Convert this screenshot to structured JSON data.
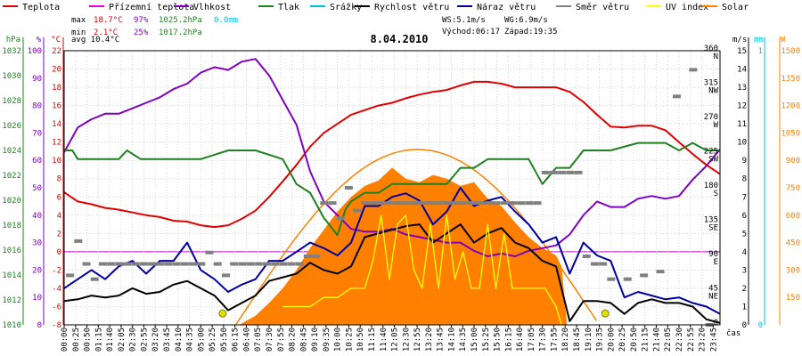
{
  "chart_data": {
    "type": "line",
    "title": "8.04.2010",
    "legend": [
      {
        "label": "Teplota",
        "color": "#e00000"
      },
      {
        "label": "Přízemní teplota",
        "color": "#e000e0"
      },
      {
        "label": "Vlhkost",
        "color": "#8000c0"
      },
      {
        "label": "Tlak",
        "color": "#208020"
      },
      {
        "label": "Srážky",
        "color": "#00c0e0"
      },
      {
        "label": "Rychlost větru",
        "color": "#000000"
      },
      {
        "label": "Náraz větru",
        "color": "#0000a0"
      },
      {
        "label": "Směr větru",
        "color": "#808080"
      },
      {
        "label": "UV index",
        "color": "#ffff00"
      },
      {
        "label": "Solar",
        "color": "#ff8000"
      }
    ],
    "stats": {
      "row1": [
        {
          "text": "max",
          "color": "#000000"
        },
        {
          "text": "18.7°C",
          "color": "#e00000"
        },
        {
          "text": "97%",
          "color": "#8000c0"
        },
        {
          "text": "1025.2hPa",
          "color": "#208020"
        },
        {
          "text": "0.0mm",
          "color": "#00c0e0"
        }
      ],
      "row2": [
        {
          "text": "min",
          "color": "#000000"
        },
        {
          "text": "2.1°C",
          "color": "#e00000"
        },
        {
          "text": "25%",
          "color": "#8000c0"
        },
        {
          "text": "1017.2hPa",
          "color": "#208020"
        }
      ],
      "row3": [
        {
          "text": "avg 10.4°C",
          "color": "#000000"
        }
      ],
      "wind_line1": [
        "WS:5.1m/s",
        "WG:6.9m/s"
      ],
      "wind_line2": [
        "Východ:06:17",
        "Západ:19:35"
      ]
    },
    "axes": {
      "hpa": {
        "unit": "hPa",
        "color": "#208020",
        "range": [
          1010,
          1032
        ],
        "ticks": [
          1010,
          1012,
          1014,
          1016,
          1018,
          1020,
          1022,
          1024,
          1026,
          1028,
          1030,
          1032
        ]
      },
      "percent": {
        "unit": "%",
        "color": "#8000c0",
        "range": [
          0,
          100
        ],
        "ticks": [
          0,
          10,
          20,
          30,
          40,
          50,
          60,
          70,
          80,
          90,
          100
        ]
      },
      "celsius": {
        "unit": "°C",
        "color": "#e00000",
        "range": [
          -8,
          22
        ],
        "ticks": [
          -8,
          -6,
          -4,
          -2,
          0,
          2,
          4,
          6,
          8,
          10,
          12,
          14,
          16,
          18,
          20,
          22
        ]
      },
      "direction": {
        "range": [
          0,
          360
        ],
        "labels": [
          {
            "deg": 360,
            "deg_text": "360",
            "name": "N"
          },
          {
            "deg": 315,
            "deg_text": "315",
            "name": "NW"
          },
          {
            "deg": 270,
            "deg_text": "270",
            "name": "W"
          },
          {
            "deg": 225,
            "deg_text": "225",
            "name": "SW"
          },
          {
            "deg": 180,
            "deg_text": "180",
            "name": "S"
          },
          {
            "deg": 135,
            "deg_text": "135",
            "name": "SE"
          },
          {
            "deg": 90,
            "deg_text": "90",
            "name": "E"
          },
          {
            "deg": 45,
            "deg_text": "45",
            "name": "NE"
          },
          {
            "deg": 0,
            "deg_text": "0",
            "name": ""
          }
        ]
      },
      "wind": {
        "unit": "m/s",
        "color": "#000000",
        "range": [
          0,
          15
        ],
        "ticks": [
          0,
          1,
          2,
          3,
          4,
          5,
          6,
          7,
          8,
          9,
          10,
          11,
          12,
          13,
          14,
          15
        ]
      },
      "rain": {
        "unit": "mm",
        "color": "#00c0e0",
        "range": [
          0,
          1
        ],
        "ticks": [
          0,
          1
        ]
      },
      "solar": {
        "unit": "W",
        "color": "#ff8000",
        "range": [
          0,
          1500
        ],
        "ticks": [
          150,
          300,
          450,
          600,
          750,
          900,
          1050,
          1200,
          1350,
          1500
        ]
      },
      "time": {
        "label": "čas",
        "ticks": [
          "00:00",
          "00:25",
          "00:50",
          "01:15",
          "01:40",
          "02:05",
          "02:30",
          "02:55",
          "03:20",
          "03:45",
          "04:10",
          "04:35",
          "05:00",
          "05:25",
          "05:50",
          "06:15",
          "06:40",
          "07:05",
          "07:30",
          "07:55",
          "08:20",
          "08:45",
          "09:10",
          "09:35",
          "10:00",
          "10:25",
          "10:50",
          "11:15",
          "11:40",
          "12:05",
          "12:30",
          "12:55",
          "13:20",
          "13:45",
          "14:10",
          "14:35",
          "15:00",
          "15:25",
          "15:50",
          "16:15",
          "16:40",
          "17:05",
          "17:30",
          "17:55",
          "18:20",
          "18:45",
          "19:10",
          "19:35",
          "20:00",
          "20:25",
          "20:50",
          "21:15",
          "21:40",
          "22:05",
          "22:30",
          "22:55",
          "23:20",
          "23:45"
        ]
      }
    },
    "x_unit": "hours",
    "series": [
      {
        "name": "Teplota",
        "color": "#e00000",
        "axis": "celsius",
        "x": [
          0,
          0.5,
          1,
          1.5,
          2,
          2.5,
          3,
          3.5,
          4,
          4.5,
          5,
          5.5,
          6,
          6.5,
          7,
          7.5,
          8,
          8.5,
          9,
          9.5,
          10,
          10.5,
          11,
          11.5,
          12,
          12.5,
          13,
          13.5,
          14,
          14.5,
          15,
          15.5,
          16,
          16.5,
          17,
          17.5,
          18,
          18.5,
          19,
          19.5,
          20,
          20.5,
          21,
          21.5,
          22,
          22.5,
          23,
          23.5,
          24
        ],
        "y": [
          6.5,
          5.5,
          5.2,
          4.8,
          4.6,
          4.3,
          4.0,
          3.8,
          3.4,
          3.3,
          2.9,
          2.7,
          2.9,
          3.6,
          4.5,
          6.0,
          7.7,
          9.5,
          11.5,
          13.0,
          14.0,
          15.0,
          15.5,
          16.0,
          16.3,
          16.8,
          17.2,
          17.5,
          17.7,
          18.2,
          18.6,
          18.6,
          18.4,
          18.0,
          18.0,
          18.0,
          18.0,
          17.5,
          16.4,
          15.0,
          13.7,
          13.6,
          13.8,
          13.8,
          13.3,
          12.0,
          10.7,
          9.5,
          8.5
        ]
      },
      {
        "name": "Vlhkost",
        "color": "#8000c0",
        "axis": "percent",
        "x": [
          0,
          0.5,
          1,
          1.5,
          2,
          2.5,
          3,
          3.5,
          4,
          4.5,
          5,
          5.5,
          6,
          6.5,
          7,
          7.5,
          8,
          8.5,
          9,
          9.5,
          10,
          10.5,
          11,
          11.5,
          12,
          12.5,
          13,
          13.5,
          14,
          14.5,
          15,
          15.5,
          16,
          16.5,
          17,
          17.5,
          18,
          18.5,
          19,
          19.5,
          20,
          20.5,
          21,
          21.5,
          22,
          22.5,
          23,
          23.5,
          24
        ],
        "y": [
          63,
          72,
          75,
          77,
          77,
          79,
          81,
          83,
          86,
          88,
          92,
          94,
          93,
          96,
          97,
          91,
          82,
          73,
          56,
          45,
          40,
          35,
          34,
          34,
          35,
          33,
          32,
          31,
          30,
          30,
          27,
          25,
          26,
          25,
          27,
          28,
          29,
          33,
          40,
          45,
          43,
          43,
          46,
          47,
          46,
          47,
          53,
          58,
          64
        ]
      },
      {
        "name": "Tlak",
        "color": "#208020",
        "axis": "hpa",
        "x": [
          0,
          0.3,
          0.5,
          1.5,
          2,
          2.3,
          2.8,
          5,
          6,
          6.5,
          7,
          8,
          8.5,
          9,
          9.5,
          10,
          10.3,
          10.5,
          11,
          11.5,
          12,
          12.5,
          14,
          14.5,
          15,
          15.5,
          16,
          17,
          17.5,
          18,
          18.5,
          19,
          20,
          21,
          22,
          22.5,
          23,
          23.5,
          24
        ],
        "y": [
          1024,
          1024,
          1023.3,
          1023.3,
          1023.3,
          1024,
          1023.3,
          1023.3,
          1024,
          1024,
          1024,
          1023.3,
          1021.3,
          1020.6,
          1018.6,
          1017.2,
          1019.3,
          1019.9,
          1020.6,
          1020.6,
          1021.3,
          1021.3,
          1021.3,
          1022.6,
          1022.6,
          1023.3,
          1023.3,
          1023.3,
          1021.3,
          1022.6,
          1022.6,
          1024,
          1024,
          1024.6,
          1024.6,
          1024,
          1024.6,
          1024,
          1024
        ]
      },
      {
        "name": "Náraz větru",
        "color": "#0000a0",
        "axis": "wind",
        "x": [
          0,
          0.5,
          1,
          1.5,
          2,
          2.5,
          3,
          3.5,
          4,
          4.5,
          5,
          5.5,
          6,
          6.5,
          7,
          7.5,
          8,
          8.5,
          9,
          9.5,
          10,
          10.5,
          11,
          11.5,
          12,
          12.5,
          13,
          13.5,
          14,
          14.5,
          15,
          15.5,
          16,
          16.5,
          17,
          17.5,
          18,
          18.5,
          19,
          19.5,
          20,
          20.5,
          21,
          21.5,
          22,
          22.5,
          23,
          23.5,
          24
        ],
        "y": [
          2,
          2.5,
          3,
          2.5,
          3.2,
          3.5,
          2.8,
          3.5,
          3.5,
          4.5,
          3,
          2.5,
          1.8,
          2.2,
          2.5,
          3.5,
          3.5,
          4,
          4.5,
          4.2,
          3.8,
          4.5,
          6.5,
          6.5,
          7,
          7.2,
          6.8,
          5.5,
          6.2,
          7.5,
          6.5,
          6.8,
          7,
          6.2,
          5.5,
          4.5,
          4.8,
          2.8,
          4.5,
          3.8,
          3.5,
          1.5,
          1.8,
          1.6,
          1.4,
          1.5,
          1.2,
          1,
          0.6
        ]
      },
      {
        "name": "Rychlost větru",
        "color": "#000000",
        "axis": "wind",
        "x": [
          0,
          0.5,
          1,
          1.5,
          2,
          2.5,
          3,
          3.5,
          4,
          4.5,
          5,
          5.5,
          6,
          6.5,
          7,
          7.5,
          8,
          8.5,
          9,
          9.5,
          10,
          10.5,
          11,
          11.5,
          12,
          12.5,
          13,
          13.5,
          14,
          14.5,
          15,
          15.5,
          16,
          16.5,
          17,
          17.5,
          18,
          18.5,
          19,
          19.5,
          20,
          20.5,
          21,
          21.5,
          22,
          22.5,
          23,
          23.5,
          24
        ],
        "y": [
          1.3,
          1.4,
          1.6,
          1.5,
          1.6,
          2,
          1.7,
          1.8,
          2.2,
          2.4,
          2,
          1.6,
          0.8,
          1.2,
          1.6,
          2.4,
          2.6,
          2.8,
          3.4,
          3,
          2.8,
          3.2,
          4.8,
          5,
          5.2,
          5.4,
          5.5,
          4.5,
          5,
          5.5,
          4.5,
          5,
          5.3,
          4.5,
          4.2,
          3.5,
          3.2,
          0.2,
          1.3,
          1.3,
          1.2,
          0.6,
          1.2,
          1.4,
          1.2,
          1.2,
          1,
          0.3,
          0.1
        ]
      },
      {
        "name": "Solar",
        "color": "#ff8000",
        "axis": "solar",
        "fill": true,
        "x": [
          6.4,
          7,
          7.5,
          8,
          8.5,
          9,
          9.5,
          10,
          10.5,
          11,
          11.5,
          12,
          12.5,
          13,
          13.5,
          14,
          14.5,
          15,
          15.5,
          16,
          16.5,
          17,
          17.5,
          18,
          18.2,
          18.4,
          19,
          24
        ],
        "y": [
          0,
          50,
          120,
          200,
          300,
          420,
          520,
          620,
          700,
          760,
          790,
          860,
          800,
          780,
          820,
          800,
          760,
          780,
          690,
          650,
          560,
          480,
          420,
          380,
          320,
          0,
          0,
          0
        ]
      },
      {
        "name": "Směr větru",
        "color": "#808080",
        "axis": "direction",
        "type": "scatter",
        "x": [
          0.2,
          0.5,
          0.8,
          1.1,
          1.4,
          1.7,
          2.0,
          2.3,
          2.6,
          2.9,
          3.2,
          3.5,
          3.8,
          4.1,
          4.4,
          4.7,
          5.0,
          5.3,
          5.6,
          5.9,
          6.2,
          6.5,
          6.8,
          7.1,
          7.4,
          7.7,
          8.0,
          8.3,
          8.6,
          8.9,
          9.2,
          9.5,
          9.8,
          10.1,
          10.4,
          10.7,
          11.0,
          11.3,
          11.6,
          11.9,
          12.2,
          12.5,
          12.8,
          13.1,
          13.4,
          13.7,
          14.0,
          14.3,
          14.6,
          14.9,
          15.2,
          15.5,
          15.8,
          16.1,
          16.4,
          16.7,
          17.0,
          17.3,
          17.6,
          17.9,
          18.2,
          18.5,
          18.8,
          19.1,
          19.4,
          19.7,
          20.0,
          20.6,
          21.2,
          21.8,
          22.4,
          23.0,
          23.6
        ],
        "y": [
          65,
          110,
          80,
          60,
          80,
          80,
          80,
          80,
          80,
          80,
          80,
          80,
          80,
          80,
          80,
          80,
          80,
          95,
          80,
          65,
          80,
          80,
          80,
          80,
          80,
          80,
          80,
          80,
          80,
          90,
          90,
          160,
          160,
          140,
          180,
          150,
          160,
          160,
          160,
          160,
          160,
          160,
          160,
          160,
          160,
          160,
          160,
          160,
          160,
          160,
          160,
          160,
          160,
          160,
          160,
          160,
          160,
          160,
          200,
          200,
          200,
          200,
          200,
          90,
          80,
          80,
          60,
          60,
          65,
          70,
          300,
          335,
          0
        ]
      },
      {
        "name": "UV index",
        "color": "#ffff00",
        "axis": "wind",
        "x": [
          8.0,
          9.0,
          9.5,
          10.0,
          10.5,
          11.0,
          11.3,
          11.6,
          11.9,
          12.2,
          12.5,
          12.8,
          13.1,
          13.4,
          13.7,
          14.0,
          14.3,
          14.6,
          14.9,
          15.2,
          15.5,
          15.8,
          16.1,
          16.4,
          16.7,
          17.0,
          17.3,
          17.6,
          18.0,
          18.2
        ],
        "y": [
          1,
          1,
          1.5,
          1.5,
          2,
          2,
          3.5,
          6,
          2.5,
          5.5,
          6,
          3,
          2,
          5.5,
          2,
          6,
          2.5,
          4,
          2,
          2,
          5.5,
          2,
          5,
          2,
          2,
          2,
          2,
          2,
          1,
          0
        ]
      }
    ],
    "extra_dots": [
      {
        "x": 5.8,
        "deg": 15,
        "color": "#e0e000"
      },
      {
        "x": 19.8,
        "deg": 15,
        "color": "#e0e000"
      }
    ]
  }
}
